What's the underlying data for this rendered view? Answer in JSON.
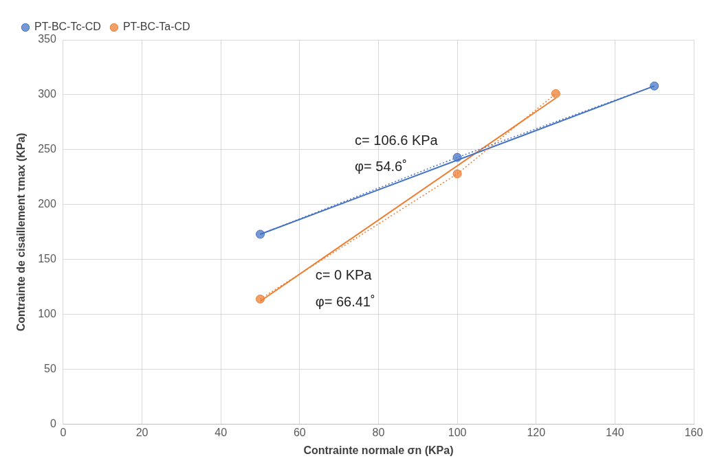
{
  "chart_data": {
    "type": "scatter",
    "xlabel": "Contrainte normale σn (KPa)",
    "ylabel": "Contrainte de cisaillement τmax (KPa)",
    "xlim": [
      0,
      160
    ],
    "xticks": [
      0,
      20,
      40,
      60,
      80,
      100,
      120,
      140,
      160
    ],
    "ylim": [
      0,
      350
    ],
    "yticks": [
      0,
      50,
      100,
      150,
      200,
      250,
      300,
      350
    ],
    "grid": true,
    "legend": "top left",
    "series": [
      {
        "name": "PT-BC-Tc-CD",
        "type": "line",
        "color": "#4472c4",
        "x": [
          50,
          100,
          150
        ],
        "values": [
          173,
          243,
          308
        ],
        "marker": "circle",
        "line_style": "dotted"
      },
      {
        "name": "PT-BC-Ta-CD",
        "type": "line",
        "color": "#ed7d31",
        "x": [
          50,
          100,
          125
        ],
        "values": [
          114,
          228,
          301
        ],
        "marker": "circle",
        "line_style": "dotted"
      },
      {
        "type": "line",
        "color": "#4472c4",
        "x": [
          50,
          150
        ],
        "values": [
          173,
          308
        ],
        "marker": "none",
        "line_style": "solid"
      },
      {
        "type": "line",
        "color": "#ed7d31",
        "x": [
          50,
          125
        ],
        "values": [
          112,
          297
        ],
        "marker": "none",
        "line_style": "solid"
      }
    ],
    "annotations": [
      "c= 106.6 KPa",
      "φ= 54.6˚",
      "c= 0 KPa",
      "φ= 66.41˚"
    ]
  }
}
